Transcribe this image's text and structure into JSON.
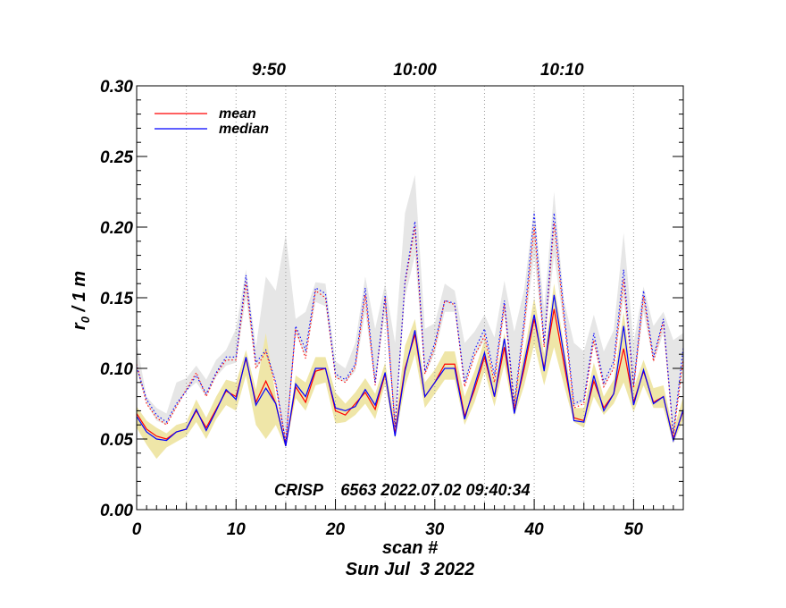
{
  "chart_data": {
    "type": "line",
    "title": "",
    "xlabel": "scan #",
    "ylabel_main": "r",
    "ylabel_sub": "0",
    "ylabel_rest": " / 1 m",
    "date_label": "Sun Jul  3 2022",
    "annotation": "CRISP    6563 2022.07.02 09:40:34",
    "xlim": [
      0,
      55
    ],
    "ylim": [
      0,
      0.3
    ],
    "x_ticks": [
      0,
      10,
      20,
      30,
      40,
      50
    ],
    "x_tick_labels": [
      "0",
      "10",
      "20",
      "30",
      "40",
      "50"
    ],
    "y_ticks": [
      0,
      0.05,
      0.1,
      0.15,
      0.2,
      0.25,
      0.3
    ],
    "y_tick_labels": [
      "0.00",
      "0.05",
      "0.10",
      "0.15",
      "0.20",
      "0.25",
      "0.30"
    ],
    "top_time_labels": [
      {
        "scan": 13.3,
        "label": "9:50"
      },
      {
        "scan": 28.0,
        "label": "10:00"
      },
      {
        "scan": 42.8,
        "label": "10:10"
      }
    ],
    "vertical_grid_scans": [
      5,
      10,
      15,
      20,
      25,
      30,
      35,
      40,
      45,
      50
    ],
    "legend": [
      {
        "name": "mean",
        "color": "#ff0000"
      },
      {
        "name": "median",
        "color": "#0000ff"
      }
    ],
    "x": [
      0,
      1,
      2,
      3,
      4,
      5,
      6,
      7,
      8,
      9,
      10,
      11,
      12,
      13,
      14,
      15,
      16,
      17,
      18,
      19,
      20,
      21,
      22,
      23,
      24,
      25,
      26,
      27,
      28,
      29,
      30,
      31,
      32,
      33,
      34,
      35,
      36,
      37,
      38,
      39,
      40,
      41,
      42,
      43,
      44,
      45,
      46,
      47,
      48,
      49,
      50,
      51,
      52,
      53,
      54,
      55
    ],
    "series": [
      {
        "name": "mean",
        "color": "#ff0000",
        "values": [
          0.068,
          0.057,
          0.052,
          0.05,
          0.055,
          0.057,
          0.07,
          0.058,
          0.071,
          0.084,
          0.08,
          0.107,
          0.076,
          0.091,
          0.075,
          0.045,
          0.087,
          0.076,
          0.098,
          0.1,
          0.07,
          0.067,
          0.075,
          0.083,
          0.071,
          0.096,
          0.054,
          0.1,
          0.124,
          0.08,
          0.09,
          0.103,
          0.103,
          0.066,
          0.085,
          0.108,
          0.08,
          0.115,
          0.07,
          0.1,
          0.135,
          0.1,
          0.142,
          0.103,
          0.065,
          0.063,
          0.091,
          0.072,
          0.082,
          0.114,
          0.076,
          0.098,
          0.076,
          0.08,
          0.05,
          0.07
        ]
      },
      {
        "name": "median",
        "color": "#0000ff",
        "values": [
          0.066,
          0.055,
          0.05,
          0.049,
          0.055,
          0.057,
          0.071,
          0.056,
          0.07,
          0.085,
          0.078,
          0.108,
          0.074,
          0.086,
          0.075,
          0.045,
          0.089,
          0.08,
          0.1,
          0.1,
          0.072,
          0.07,
          0.073,
          0.085,
          0.074,
          0.097,
          0.052,
          0.098,
          0.127,
          0.08,
          0.09,
          0.1,
          0.1,
          0.064,
          0.088,
          0.111,
          0.08,
          0.121,
          0.068,
          0.104,
          0.138,
          0.098,
          0.152,
          0.109,
          0.063,
          0.062,
          0.095,
          0.07,
          0.082,
          0.13,
          0.074,
          0.099,
          0.075,
          0.08,
          0.049,
          0.071
        ]
      },
      {
        "name": "mean (upper dotted)",
        "color": "#ff0000",
        "values": [
          0.103,
          0.075,
          0.065,
          0.06,
          0.073,
          0.085,
          0.097,
          0.08,
          0.096,
          0.106,
          0.106,
          0.161,
          0.1,
          0.112,
          0.088,
          0.048,
          0.128,
          0.107,
          0.155,
          0.15,
          0.094,
          0.09,
          0.101,
          0.152,
          0.088,
          0.15,
          0.06,
          0.16,
          0.2,
          0.096,
          0.115,
          0.148,
          0.145,
          0.087,
          0.109,
          0.123,
          0.09,
          0.145,
          0.072,
          0.13,
          0.2,
          0.115,
          0.203,
          0.135,
          0.072,
          0.075,
          0.12,
          0.087,
          0.1,
          0.163,
          0.086,
          0.151,
          0.105,
          0.133,
          0.052,
          0.107
        ]
      },
      {
        "name": "median (upper dotted)",
        "color": "#0000ff",
        "values": [
          0.101,
          0.078,
          0.067,
          0.062,
          0.075,
          0.084,
          0.095,
          0.082,
          0.097,
          0.108,
          0.108,
          0.166,
          0.104,
          0.113,
          0.09,
          0.047,
          0.13,
          0.113,
          0.157,
          0.153,
          0.096,
          0.092,
          0.103,
          0.157,
          0.09,
          0.152,
          0.058,
          0.162,
          0.204,
          0.098,
          0.118,
          0.148,
          0.146,
          0.09,
          0.113,
          0.128,
          0.095,
          0.148,
          0.075,
          0.135,
          0.21,
          0.118,
          0.21,
          0.14,
          0.075,
          0.078,
          0.125,
          0.09,
          0.105,
          0.17,
          0.088,
          0.155,
          0.108,
          0.135,
          0.054,
          0.115
        ]
      }
    ],
    "bands": [
      {
        "name": "upper band (gray)",
        "color": "#e6e6e6",
        "low": [
          0.098,
          0.075,
          0.063,
          0.06,
          0.072,
          0.084,
          0.09,
          0.08,
          0.094,
          0.102,
          0.104,
          0.15,
          0.1,
          0.108,
          0.09,
          0.048,
          0.124,
          0.108,
          0.147,
          0.144,
          0.093,
          0.09,
          0.098,
          0.14,
          0.089,
          0.14,
          0.06,
          0.15,
          0.18,
          0.095,
          0.111,
          0.14,
          0.14,
          0.087,
          0.108,
          0.12,
          0.09,
          0.138,
          0.073,
          0.125,
          0.18,
          0.115,
          0.18,
          0.13,
          0.073,
          0.076,
          0.117,
          0.086,
          0.1,
          0.15,
          0.085,
          0.14,
          0.104,
          0.125,
          0.052,
          0.103
        ],
        "high": [
          0.118,
          0.08,
          0.072,
          0.068,
          0.09,
          0.093,
          0.102,
          0.092,
          0.106,
          0.113,
          0.128,
          0.17,
          0.115,
          0.165,
          0.155,
          0.195,
          0.135,
          0.14,
          0.161,
          0.16,
          0.105,
          0.1,
          0.118,
          0.165,
          0.128,
          0.16,
          0.118,
          0.21,
          0.237,
          0.128,
          0.132,
          0.16,
          0.155,
          0.118,
          0.126,
          0.138,
          0.122,
          0.162,
          0.126,
          0.156,
          0.215,
          0.142,
          0.225,
          0.148,
          0.118,
          0.112,
          0.138,
          0.112,
          0.127,
          0.196,
          0.118,
          0.158,
          0.13,
          0.14,
          0.12,
          0.125
        ]
      },
      {
        "name": "lower band (khaki)",
        "color": "#efe6a8",
        "low": [
          0.058,
          0.046,
          0.036,
          0.044,
          0.048,
          0.052,
          0.062,
          0.05,
          0.064,
          0.074,
          0.07,
          0.095,
          0.06,
          0.05,
          0.06,
          0.044,
          0.079,
          0.07,
          0.088,
          0.09,
          0.061,
          0.062,
          0.067,
          0.075,
          0.064,
          0.089,
          0.05,
          0.087,
          0.11,
          0.072,
          0.082,
          0.092,
          0.092,
          0.06,
          0.076,
          0.098,
          0.073,
          0.103,
          0.066,
          0.088,
          0.117,
          0.088,
          0.115,
          0.088,
          0.062,
          0.058,
          0.08,
          0.067,
          0.075,
          0.09,
          0.069,
          0.088,
          0.072,
          0.072,
          0.047,
          0.064
        ],
        "high": [
          0.073,
          0.063,
          0.058,
          0.054,
          0.06,
          0.062,
          0.078,
          0.065,
          0.08,
          0.092,
          0.09,
          0.113,
          0.085,
          0.125,
          0.08,
          0.048,
          0.095,
          0.09,
          0.108,
          0.108,
          0.083,
          0.075,
          0.083,
          0.093,
          0.082,
          0.104,
          0.062,
          0.116,
          0.135,
          0.09,
          0.099,
          0.112,
          0.112,
          0.08,
          0.098,
          0.12,
          0.09,
          0.125,
          0.08,
          0.112,
          0.15,
          0.11,
          0.16,
          0.116,
          0.072,
          0.072,
          0.104,
          0.08,
          0.092,
          0.14,
          0.086,
          0.106,
          0.086,
          0.088,
          0.056,
          0.08
        ]
      }
    ]
  }
}
